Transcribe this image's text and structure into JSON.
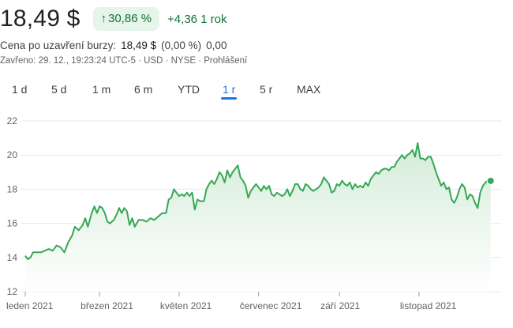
{
  "quote": {
    "price": "18,49 $",
    "change_pct": "30,86 %",
    "change_arrow": "↑",
    "change_abs": "+4,36 1 rok",
    "close_label": "Cena po uzavření burzy:",
    "close_value": "18,49 $",
    "close_pct": "(0,00 %)",
    "close_abs": "0,00",
    "meta": "Zavřeno: 29. 12., 19:23:24 UTC-5 · USD · NYSE · Prohlášení"
  },
  "tabs": [
    {
      "label": "1 d",
      "active": false
    },
    {
      "label": "5 d",
      "active": false
    },
    {
      "label": "1 m",
      "active": false
    },
    {
      "label": "6 m",
      "active": false
    },
    {
      "label": "YTD",
      "active": false
    },
    {
      "label": "1 r",
      "active": true
    },
    {
      "label": "5 r",
      "active": false
    },
    {
      "label": "MAX",
      "active": false
    }
  ],
  "colors": {
    "line": "#34a853",
    "fill_top": "#d4ecd8",
    "fill_bottom": "#ffffff",
    "grid": "#e8eaed",
    "axis_text": "#5f6368",
    "accent": "#1a73e8"
  },
  "chart_data": {
    "type": "area",
    "ylim": [
      12,
      22
    ],
    "yticks": [
      "22",
      "20",
      "18",
      "16",
      "14",
      "12"
    ],
    "grid": true,
    "x_ticks": [
      {
        "label": "leden 2021",
        "t": 0
      },
      {
        "label": "březen 2021",
        "t": 57
      },
      {
        "label": "květen 2021",
        "t": 118
      },
      {
        "label": "červenec 2021",
        "t": 179
      },
      {
        "label": "září 2021",
        "t": 241
      },
      {
        "label": "listopad 2021",
        "t": 302
      }
    ],
    "x_range": [
      0,
      362
    ],
    "series": [
      {
        "points": [
          [
            0,
            14.1
          ],
          [
            2,
            13.9
          ],
          [
            4,
            14.0
          ],
          [
            6,
            14.3
          ],
          [
            9,
            14.3
          ],
          [
            12,
            14.3
          ],
          [
            15,
            14.4
          ],
          [
            18,
            14.5
          ],
          [
            21,
            14.4
          ],
          [
            24,
            14.7
          ],
          [
            27,
            14.6
          ],
          [
            30,
            14.3
          ],
          [
            33,
            14.9
          ],
          [
            36,
            15.3
          ],
          [
            38,
            15.8
          ],
          [
            41,
            15.6
          ],
          [
            44,
            15.9
          ],
          [
            46,
            16.3
          ],
          [
            48,
            15.8
          ],
          [
            51,
            16.6
          ],
          [
            53,
            17.0
          ],
          [
            55,
            16.6
          ],
          [
            57,
            17.0
          ],
          [
            59,
            16.9
          ],
          [
            61,
            16.6
          ],
          [
            63,
            16.1
          ],
          [
            65,
            16.0
          ],
          [
            68,
            16.2
          ],
          [
            70,
            16.5
          ],
          [
            72,
            16.9
          ],
          [
            74,
            16.6
          ],
          [
            76,
            16.9
          ],
          [
            78,
            16.7
          ],
          [
            80,
            15.9
          ],
          [
            82,
            16.3
          ],
          [
            84,
            15.8
          ],
          [
            87,
            16.2
          ],
          [
            90,
            16.2
          ],
          [
            93,
            16.1
          ],
          [
            96,
            16.3
          ],
          [
            99,
            16.2
          ],
          [
            102,
            16.4
          ],
          [
            105,
            16.6
          ],
          [
            108,
            16.6
          ],
          [
            110,
            17.4
          ],
          [
            112,
            17.5
          ],
          [
            114,
            18.0
          ],
          [
            116,
            17.8
          ],
          [
            118,
            17.6
          ],
          [
            120,
            17.7
          ],
          [
            122,
            17.6
          ],
          [
            124,
            17.8
          ],
          [
            126,
            17.6
          ],
          [
            128,
            17.8
          ],
          [
            130,
            16.8
          ],
          [
            132,
            17.4
          ],
          [
            134,
            17.3
          ],
          [
            137,
            17.3
          ],
          [
            139,
            18.0
          ],
          [
            141,
            18.3
          ],
          [
            143,
            18.5
          ],
          [
            145,
            18.3
          ],
          [
            147,
            18.6
          ],
          [
            149,
            19.0
          ],
          [
            151,
            18.8
          ],
          [
            153,
            18.4
          ],
          [
            155,
            19.1
          ],
          [
            157,
            18.7
          ],
          [
            159,
            19.0
          ],
          [
            161,
            19.2
          ],
          [
            163,
            19.4
          ],
          [
            165,
            18.7
          ],
          [
            167,
            18.5
          ],
          [
            169,
            18.2
          ],
          [
            171,
            17.5
          ],
          [
            173,
            17.9
          ],
          [
            175,
            18.1
          ],
          [
            177,
            18.3
          ],
          [
            179,
            18.1
          ],
          [
            181,
            17.9
          ],
          [
            183,
            18.2
          ],
          [
            185,
            18.0
          ],
          [
            187,
            18.2
          ],
          [
            189,
            17.7
          ],
          [
            191,
            17.6
          ],
          [
            193,
            17.8
          ],
          [
            195,
            17.7
          ],
          [
            197,
            17.6
          ],
          [
            199,
            17.7
          ],
          [
            201,
            18.0
          ],
          [
            203,
            17.6
          ],
          [
            205,
            17.9
          ],
          [
            207,
            18.3
          ],
          [
            209,
            18.3
          ],
          [
            211,
            18.0
          ],
          [
            213,
            17.9
          ],
          [
            215,
            18.3
          ],
          [
            217,
            18.2
          ],
          [
            219,
            18.0
          ],
          [
            221,
            17.9
          ],
          [
            223,
            18.0
          ],
          [
            225,
            18.1
          ],
          [
            227,
            18.3
          ],
          [
            229,
            18.7
          ],
          [
            231,
            18.5
          ],
          [
            233,
            18.3
          ],
          [
            235,
            17.8
          ],
          [
            237,
            17.9
          ],
          [
            239,
            18.3
          ],
          [
            241,
            18.2
          ],
          [
            243,
            18.5
          ],
          [
            245,
            18.3
          ],
          [
            247,
            18.2
          ],
          [
            249,
            18.4
          ],
          [
            251,
            18.0
          ],
          [
            253,
            18.3
          ],
          [
            255,
            18.1
          ],
          [
            257,
            18.2
          ],
          [
            259,
            18.1
          ],
          [
            261,
            18.4
          ],
          [
            263,
            18.2
          ],
          [
            265,
            18.6
          ],
          [
            267,
            18.8
          ],
          [
            269,
            19.0
          ],
          [
            271,
            18.9
          ],
          [
            273,
            19.1
          ],
          [
            275,
            19.2
          ],
          [
            277,
            19.2
          ],
          [
            279,
            19.1
          ],
          [
            281,
            19.3
          ],
          [
            283,
            19.3
          ],
          [
            285,
            19.6
          ],
          [
            287,
            19.8
          ],
          [
            289,
            20.0
          ],
          [
            291,
            19.8
          ],
          [
            293,
            20.0
          ],
          [
            295,
            20.1
          ],
          [
            297,
            20.3
          ],
          [
            299,
            19.9
          ],
          [
            301,
            20.7
          ],
          [
            303,
            19.8
          ],
          [
            305,
            19.8
          ],
          [
            307,
            19.7
          ],
          [
            309,
            19.9
          ],
          [
            311,
            19.9
          ],
          [
            313,
            19.5
          ],
          [
            315,
            19.0
          ],
          [
            317,
            18.6
          ],
          [
            319,
            18.2
          ],
          [
            321,
            18.4
          ],
          [
            323,
            18.0
          ],
          [
            325,
            18.1
          ],
          [
            327,
            17.4
          ],
          [
            329,
            17.2
          ],
          [
            331,
            17.5
          ],
          [
            333,
            18.0
          ],
          [
            335,
            18.3
          ],
          [
            337,
            18.1
          ],
          [
            339,
            17.4
          ],
          [
            341,
            17.7
          ],
          [
            343,
            17.6
          ],
          [
            345,
            17.2
          ],
          [
            347,
            16.9
          ],
          [
            349,
            17.8
          ],
          [
            351,
            18.2
          ],
          [
            353,
            18.4
          ],
          [
            355,
            18.5
          ],
          [
            357,
            18.49
          ]
        ]
      }
    ]
  }
}
